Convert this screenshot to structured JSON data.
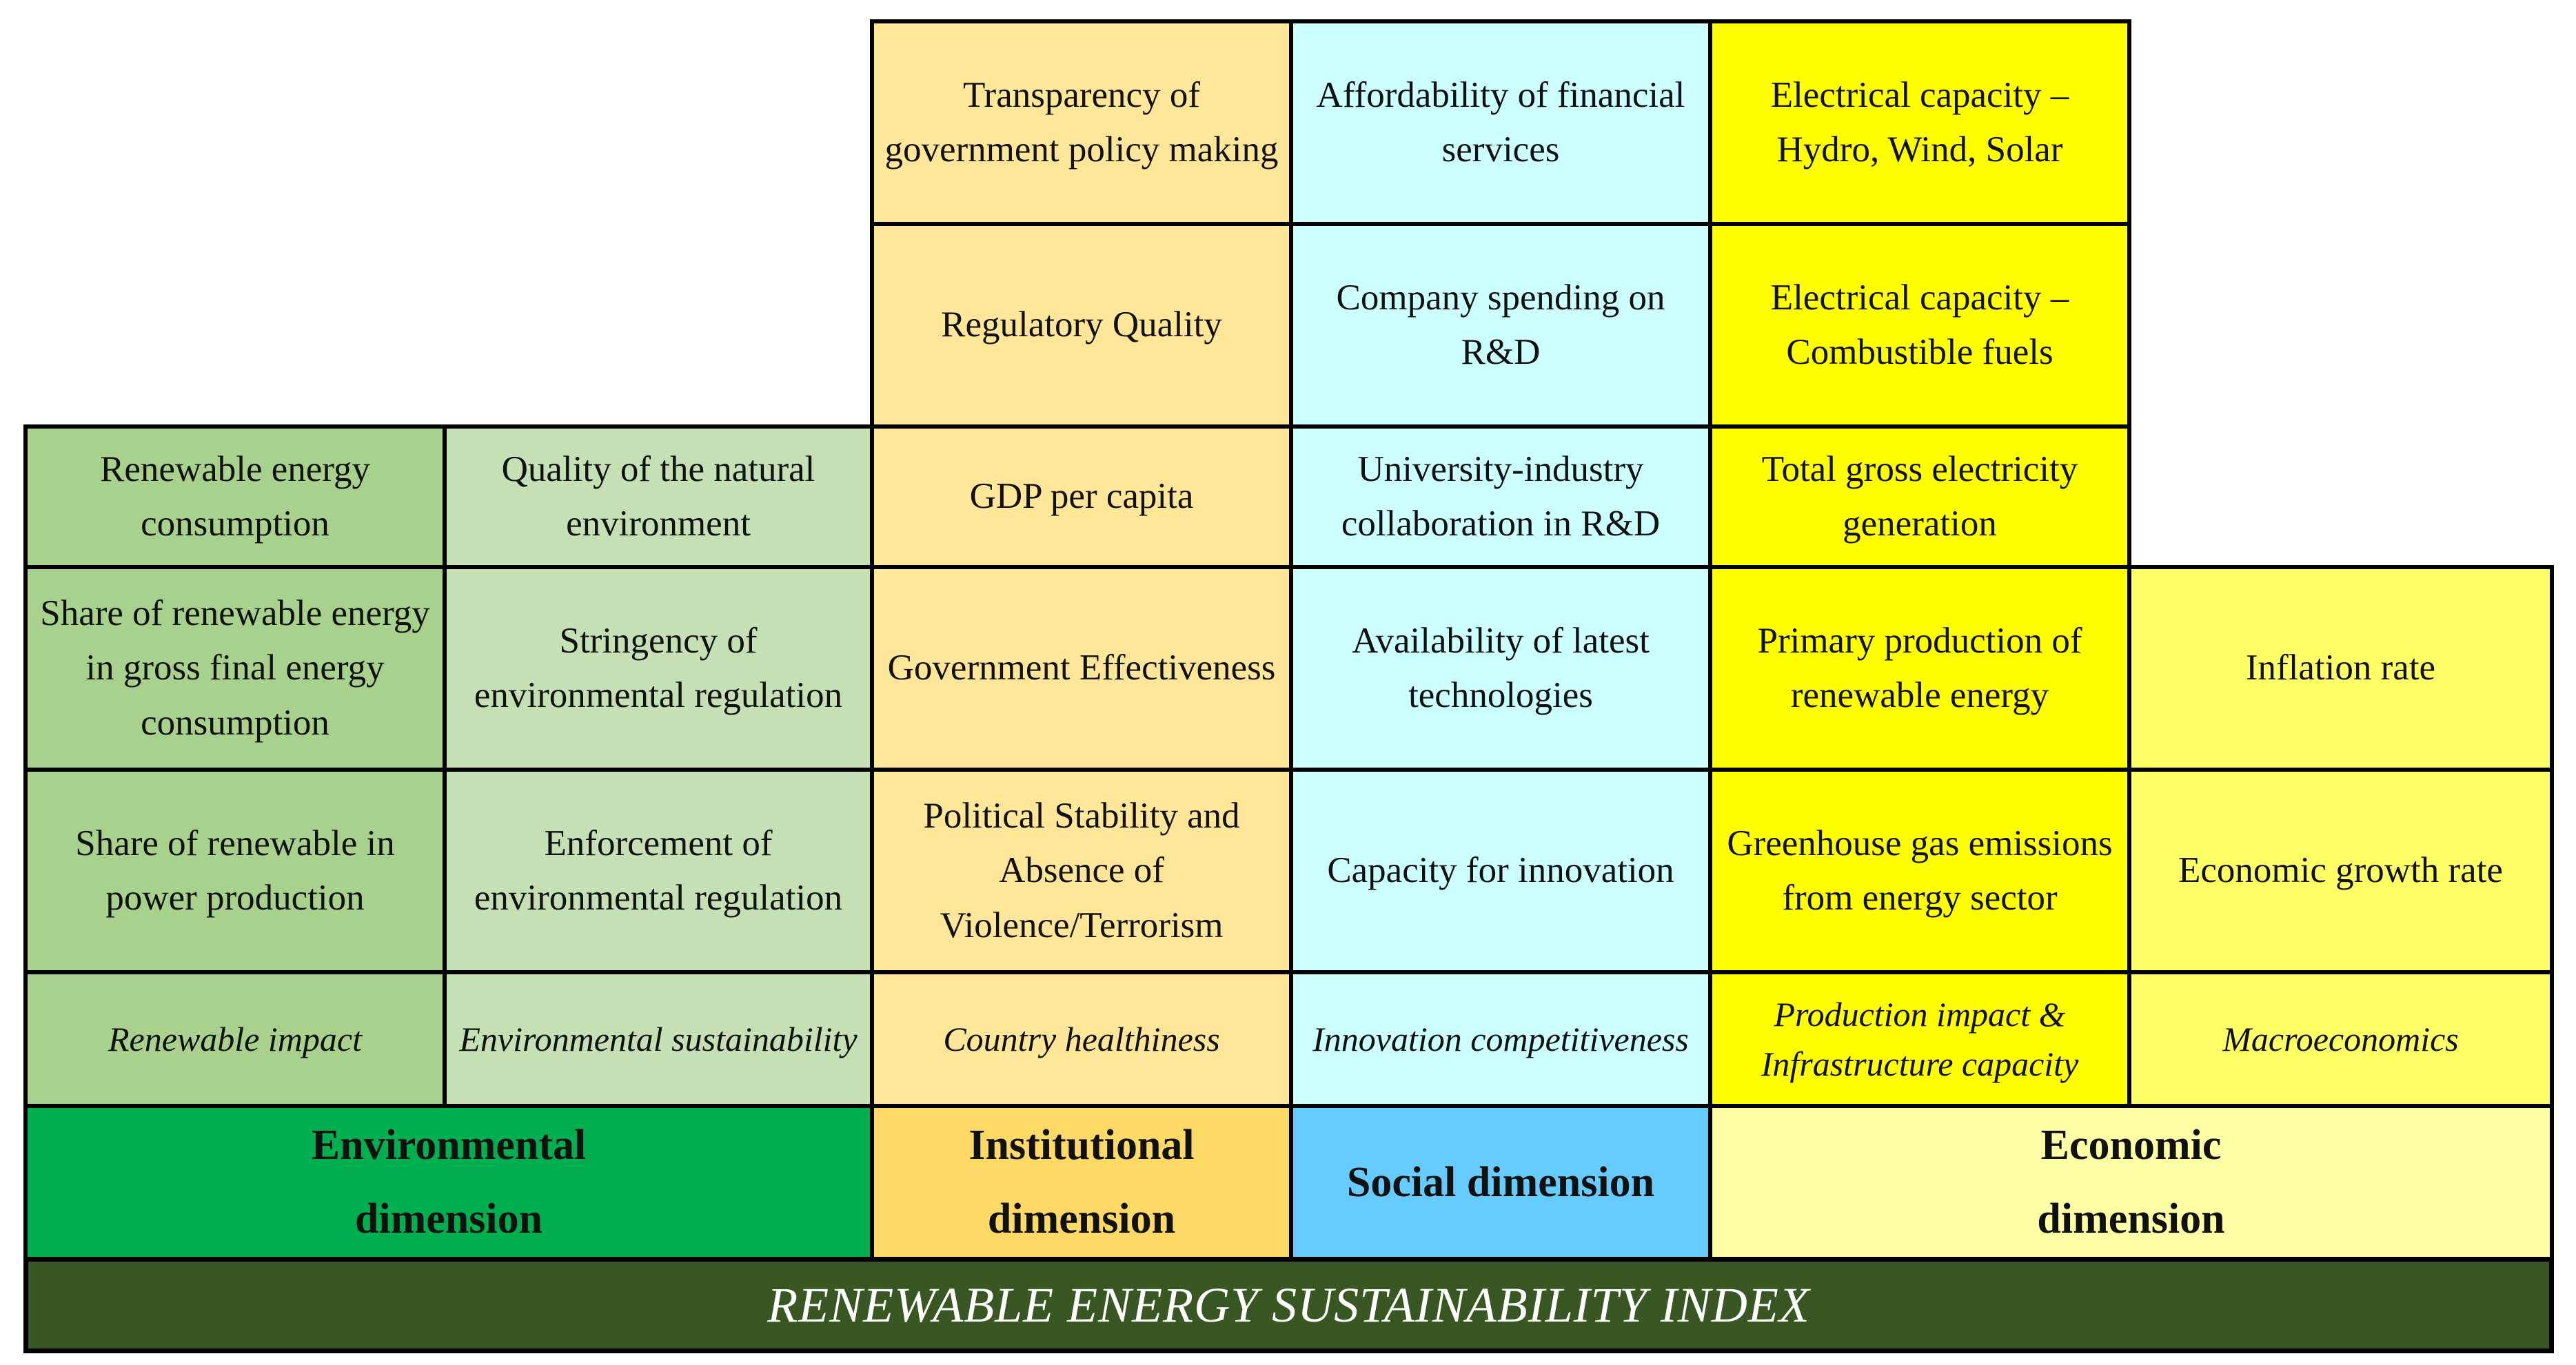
{
  "index_title": "RENEWABLE ENERGY SUSTAINABILITY INDEX",
  "dimensions": {
    "environmental": "Environmental dimension",
    "institutional": "Institutional dimension",
    "social": "Social dimension",
    "economic": "Economic dimension"
  },
  "pillars": {
    "renewable_impact": "Renewable impact",
    "environmental_sustainability": "Environmental sustainability",
    "country_healthiness": "Country healthiness",
    "innovation_competitiveness": "Innovation competitiveness",
    "production_infrastructure": "Production impact & Infrastructure capacity",
    "macroeconomics": "Macroeconomics"
  },
  "indicators": {
    "renewable_impact": [
      "Renewable energy consumption",
      "Share of renewable energy in gross final energy consumption",
      "Share of renewable in power production"
    ],
    "environmental_sustainability": [
      "Quality of the natural environment",
      "Stringency of environmental regulation",
      "Enforcement of environmental regulation"
    ],
    "country_healthiness": [
      "Transparency of government policy making",
      "Regulatory Quality",
      "GDP per capita",
      "Government Effectiveness",
      "Political Stability and Absence of Violence/Terrorism"
    ],
    "innovation_competitiveness": [
      "Affordability of financial services",
      "Company spending on R&D",
      "University-industry collaboration in R&D",
      "Availability of latest technologies",
      "Capacity for innovation"
    ],
    "production_infrastructure": [
      "Electrical capacity – Hydro, Wind, Solar",
      "Electrical capacity – Combustible fuels",
      "Total gross electricity generation",
      "Primary production of renewable energy",
      "Greenhouse gas emissions from energy sector"
    ],
    "macroeconomics": [
      "Inflation rate",
      "Economic growth rate"
    ]
  },
  "colors": {
    "renewable_impact": "#a9d18e",
    "environmental_sustainability": "#c5e0b4",
    "institutional": "#ffe699",
    "social": "#ccffff",
    "production": "#ffff00",
    "macroeconomics": "#ffff66",
    "environmental_dimension": "#00b050",
    "institutional_dimension": "#ffd966",
    "social_dimension": "#66ccff",
    "economic_dimension": "#ffffa6",
    "banner": "#385723"
  }
}
